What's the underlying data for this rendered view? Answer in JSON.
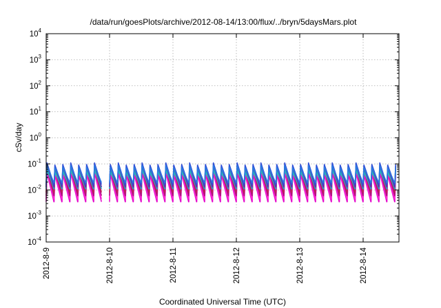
{
  "chart_data": {
    "type": "line",
    "title": "/data/run/goesPlots/archive/2012-08-14/13:00/flux/../bryn/5daysMars.plot",
    "xlabel": "Coordinated Universal Time (UTC)",
    "ylabel": "cSv/day",
    "y_scale": "log",
    "ylim": [
      0.0001,
      10000
    ],
    "y_ticks": [
      {
        "base": "10",
        "exp": "4"
      },
      {
        "base": "10",
        "exp": "3"
      },
      {
        "base": "10",
        "exp": "2"
      },
      {
        "base": "10",
        "exp": "1"
      },
      {
        "base": "10",
        "exp": "0"
      },
      {
        "base": "10",
        "exp": "-1"
      },
      {
        "base": "10",
        "exp": "-2"
      },
      {
        "base": "10",
        "exp": "-3"
      },
      {
        "base": "10",
        "exp": "-4"
      }
    ],
    "x_ticks": [
      "2012-8-9",
      "2012-8-10",
      "2012-8-11",
      "2012-8-12",
      "2012-8-13",
      "2012-8-14"
    ],
    "xlim_days": [
      0,
      5.6
    ],
    "grid": true,
    "series_pattern": {
      "cycles_per_day": 8,
      "data_gap_start_day": 0.82,
      "data_gap_end_day": 0.95
    },
    "series": [
      {
        "color": "#e60acc",
        "peak": 0.04,
        "trough": 0.0035
      },
      {
        "color": "#ff2ad4",
        "peak": 0.05,
        "trough": 0.0045
      },
      {
        "color": "#b0107e",
        "peak": 0.06,
        "trough": 0.006
      },
      {
        "color": "#c0205a",
        "peak": 0.07,
        "trough": 0.008
      },
      {
        "color": "#1aa8c8",
        "peak": 0.06,
        "trough": 0.011
      },
      {
        "color": "#20c4c0",
        "peak": 0.05,
        "trough": 0.013
      },
      {
        "color": "#6a2aa8",
        "peak": 0.08,
        "trough": 0.013
      },
      {
        "color": "#3050d8",
        "peak": 0.095,
        "trough": 0.016
      },
      {
        "color": "#2a7ae0",
        "peak": 0.075,
        "trough": 0.019
      }
    ]
  }
}
